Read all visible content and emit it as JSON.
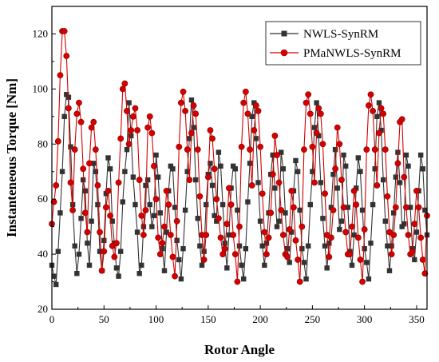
{
  "chart_data": {
    "type": "line",
    "title": "",
    "xlabel": "Rotor Angle",
    "ylabel": "Instanteneous Torque [Nm]",
    "xlim": [
      0,
      360
    ],
    "ylim": [
      20,
      130
    ],
    "xticks": [
      "0",
      "50",
      "100",
      "150",
      "200",
      "250",
      "300",
      "350"
    ],
    "yticks": [
      "20",
      "40",
      "60",
      "80",
      "100",
      "120"
    ],
    "grid": false,
    "legend_position": "top-right",
    "colors": {
      "nwls": "#333333",
      "pmanwls": "#d40000"
    },
    "series": [
      {
        "name": "NWLS-SynRM",
        "marker": "square",
        "x": [
          0,
          2,
          4,
          6,
          8,
          10,
          12,
          14,
          16,
          18,
          20,
          22,
          24,
          26,
          28,
          30,
          32,
          34,
          36,
          38,
          40,
          42,
          44,
          46,
          48,
          50,
          52,
          54,
          56,
          58,
          60,
          62,
          64,
          66,
          68,
          70,
          72,
          74,
          76,
          78,
          80,
          82,
          84,
          86,
          88,
          90,
          92,
          94,
          96,
          98,
          100,
          102,
          104,
          106,
          108,
          110,
          112,
          114,
          116,
          118,
          120,
          122,
          124,
          126,
          128,
          130,
          132,
          134,
          136,
          138,
          140,
          142,
          144,
          146,
          148,
          150,
          152,
          154,
          156,
          158,
          160,
          162,
          164,
          166,
          168,
          170,
          172,
          174,
          176,
          178,
          180,
          182,
          184,
          186,
          188,
          190,
          192,
          194,
          196,
          198,
          200,
          202,
          204,
          206,
          208,
          210,
          212,
          214,
          216,
          218,
          220,
          222,
          224,
          226,
          228,
          230,
          232,
          234,
          236,
          238,
          240,
          242,
          244,
          246,
          248,
          250,
          252,
          254,
          256,
          258,
          260,
          262,
          264,
          266,
          268,
          270,
          272,
          274,
          276,
          278,
          280,
          282,
          284,
          286,
          288,
          290,
          292,
          294,
          296,
          298,
          300,
          302,
          304,
          306,
          308,
          310,
          312,
          314,
          316,
          318,
          320,
          322,
          324,
          326,
          328,
          330,
          332,
          334,
          336,
          338,
          340,
          342,
          344,
          346,
          348,
          350,
          352,
          354,
          356,
          358,
          360
        ],
        "y": [
          36,
          32,
          29,
          41,
          55,
          70,
          90,
          98,
          97,
          79,
          58,
          43,
          33,
          40,
          53,
          67,
          63,
          44,
          36,
          52,
          73,
          70,
          58,
          41,
          34,
          45,
          62,
          75,
          71,
          52,
          44,
          35,
          32,
          41,
          59,
          70,
          78,
          95,
          83,
          68,
          58,
          48,
          33,
          36,
          50,
          65,
          67,
          58,
          50,
          54,
          76,
          68,
          55,
          42,
          34,
          48,
          63,
          72,
          71,
          57,
          45,
          38,
          31,
          42,
          56,
          70,
          82,
          96,
          86,
          67,
          53,
          43,
          36,
          41,
          58,
          69,
          73,
          65,
          54,
          52,
          77,
          72,
          58,
          44,
          35,
          47,
          64,
          72,
          71,
          56,
          43,
          36,
          31,
          42,
          59,
          73,
          90,
          95,
          82,
          66,
          52,
          43,
          36,
          44,
          55,
          69,
          76,
          64,
          50,
          52,
          77,
          71,
          55,
          42,
          37,
          48,
          63,
          74,
          70,
          56,
          42,
          37,
          31,
          43,
          58,
          70,
          86,
          95,
          83,
          66,
          53,
          43,
          35,
          44,
          57,
          69,
          78,
          64,
          49,
          52,
          76,
          72,
          57,
          41,
          36,
          47,
          64,
          75,
          70,
          56,
          42,
          37,
          31,
          44,
          58,
          71,
          90,
          95,
          85,
          67,
          52,
          43,
          34,
          43,
          55,
          68,
          77,
          66,
          50,
          51,
          76,
          72,
          57,
          42,
          38,
          48,
          63,
          76,
          71,
          56,
          47
        ]
      },
      {
        "name": "PMaNWLS-SynRM",
        "marker": "circle",
        "x": [
          0,
          2,
          4,
          6,
          8,
          10,
          12,
          14,
          16,
          18,
          20,
          22,
          24,
          26,
          28,
          30,
          32,
          34,
          36,
          38,
          40,
          42,
          44,
          46,
          48,
          50,
          52,
          54,
          56,
          58,
          60,
          62,
          64,
          66,
          68,
          70,
          72,
          74,
          76,
          78,
          80,
          82,
          84,
          86,
          88,
          90,
          92,
          94,
          96,
          98,
          100,
          102,
          104,
          106,
          108,
          110,
          112,
          114,
          116,
          118,
          120,
          122,
          124,
          126,
          128,
          130,
          132,
          134,
          136,
          138,
          140,
          142,
          144,
          146,
          148,
          150,
          152,
          154,
          156,
          158,
          160,
          162,
          164,
          166,
          168,
          170,
          172,
          174,
          176,
          178,
          180,
          182,
          184,
          186,
          188,
          190,
          192,
          194,
          196,
          198,
          200,
          202,
          204,
          206,
          208,
          210,
          212,
          214,
          216,
          218,
          220,
          222,
          224,
          226,
          228,
          230,
          232,
          234,
          236,
          238,
          240,
          242,
          244,
          246,
          248,
          250,
          252,
          254,
          256,
          258,
          260,
          262,
          264,
          266,
          268,
          270,
          272,
          274,
          276,
          278,
          280,
          282,
          284,
          286,
          288,
          290,
          292,
          294,
          296,
          298,
          300,
          302,
          304,
          306,
          308,
          310,
          312,
          314,
          316,
          318,
          320,
          322,
          324,
          326,
          328,
          330,
          332,
          334,
          336,
          338,
          340,
          342,
          344,
          346,
          348,
          350,
          352,
          354,
          356,
          358,
          360
        ],
        "y": [
          51,
          59,
          65,
          81,
          105,
          121,
          121,
          112,
          93,
          66,
          56,
          78,
          91,
          95,
          88,
          71,
          55,
          48,
          73,
          86,
          88,
          78,
          65,
          48,
          34,
          41,
          57,
          63,
          54,
          43,
          39,
          44,
          66,
          82,
          100,
          102,
          92,
          80,
          85,
          90,
          93,
          85,
          67,
          54,
          47,
          56,
          86,
          90,
          84,
          72,
          60,
          46,
          40,
          44,
          50,
          63,
          58,
          47,
          39,
          32,
          52,
          79,
          95,
          99,
          92,
          78,
          67,
          84,
          94,
          91,
          78,
          61,
          47,
          38,
          47,
          68,
          85,
          82,
          71,
          60,
          53,
          46,
          40,
          42,
          51,
          64,
          58,
          47,
          40,
          30,
          50,
          79,
          95,
          99,
          91,
          78,
          65,
          85,
          94,
          92,
          79,
          62,
          48,
          40,
          46,
          55,
          69,
          83,
          76,
          66,
          56,
          47,
          40,
          39,
          49,
          63,
          57,
          45,
          38,
          30,
          50,
          78,
          95,
          98,
          91,
          79,
          66,
          84,
          93,
          91,
          80,
          62,
          47,
          39,
          46,
          56,
          71,
          86,
          80,
          67,
          57,
          48,
          40,
          40,
          50,
          63,
          58,
          46,
          38,
          30,
          49,
          78,
          94,
          98,
          92,
          78,
          65,
          84,
          93,
          91,
          78,
          61,
          48,
          40,
          47,
          57,
          73,
          88,
          89,
          68,
          57,
          47,
          40,
          41,
          51,
          63,
          57,
          46,
          38,
          33,
          54
        ]
      }
    ]
  }
}
